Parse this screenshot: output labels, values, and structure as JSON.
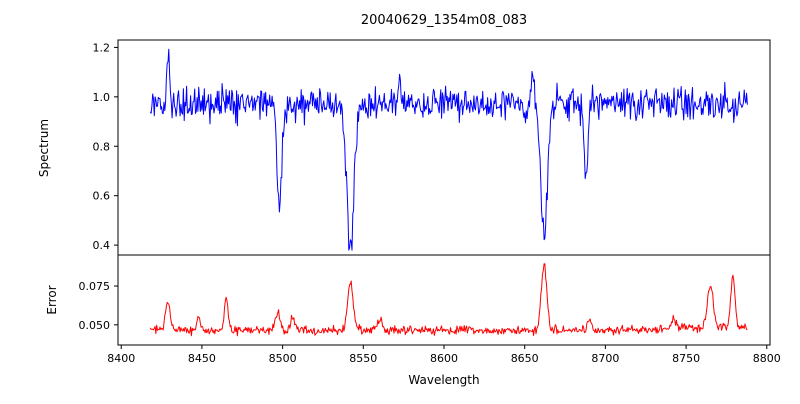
{
  "colors": {
    "spectrum_line": "#0000ff",
    "error_line": "#ff0000",
    "spine": "#000000",
    "background": "#ffffff"
  },
  "chart_data": {
    "type": "line",
    "title": "20040629_1354m08_083",
    "xlabel": "Wavelength",
    "xlim": [
      8398,
      8802
    ],
    "x_start": 8418,
    "x_end": 8788,
    "x_step": 0.5,
    "xticks": [
      8400,
      8450,
      8500,
      8550,
      8600,
      8650,
      8700,
      8750,
      8800
    ],
    "xtick_labels": [
      "8400",
      "8450",
      "8500",
      "8550",
      "8600",
      "8650",
      "8700",
      "8750",
      "8800"
    ],
    "grid": false,
    "legend": "none",
    "subplots": [
      {
        "ylabel": "Spectrum",
        "color": "#0000ff",
        "ylim": [
          0.36,
          1.23
        ],
        "yticks": [
          0.4,
          0.6,
          0.8,
          1.0,
          1.2
        ],
        "ytick_labels": [
          "0.4",
          "0.6",
          "0.8",
          "1.0",
          "1.2"
        ],
        "continuum": 0.972,
        "noise_sigma": 0.032,
        "seed": 20040629,
        "absorption_lines": [
          {
            "center": 8498,
            "depth": 0.41,
            "width": 1.5
          },
          {
            "center": 8542,
            "depth": 0.59,
            "width": 2.2
          },
          {
            "center": 8662,
            "depth": 0.53,
            "width": 2.0
          },
          {
            "center": 8688,
            "depth": 0.29,
            "width": 1.1
          }
        ],
        "emission_spikes": [
          {
            "center": 8429,
            "height": 0.22,
            "width": 0.8
          },
          {
            "center": 8572,
            "height": 0.13,
            "width": 0.7
          },
          {
            "center": 8655,
            "height": 0.14,
            "width": 0.7
          }
        ]
      },
      {
        "ylabel": "Error",
        "color": "#ff0000",
        "ylim": [
          0.037,
          0.095
        ],
        "yticks": [
          0.05,
          0.075
        ],
        "ytick_labels": [
          "0.050",
          "0.075"
        ],
        "baseline": 0.0465,
        "noise_sigma": 0.0014,
        "seed": 1354,
        "spikes": [
          {
            "center": 8429,
            "height": 0.017,
            "width": 1.5
          },
          {
            "center": 8448,
            "height": 0.008,
            "width": 1.2
          },
          {
            "center": 8465,
            "height": 0.021,
            "width": 1.2
          },
          {
            "center": 8497,
            "height": 0.012,
            "width": 1.5
          },
          {
            "center": 8506,
            "height": 0.009,
            "width": 1.2
          },
          {
            "center": 8542,
            "height": 0.031,
            "width": 1.7
          },
          {
            "center": 8560,
            "height": 0.006,
            "width": 1.5
          },
          {
            "center": 8662,
            "height": 0.042,
            "width": 1.7
          },
          {
            "center": 8690,
            "height": 0.007,
            "width": 1.2
          },
          {
            "center": 8742,
            "height": 0.006,
            "width": 1.5
          },
          {
            "center": 8765,
            "height": 0.027,
            "width": 1.8
          },
          {
            "center": 8779,
            "height": 0.033,
            "width": 1.3
          }
        ]
      }
    ]
  }
}
